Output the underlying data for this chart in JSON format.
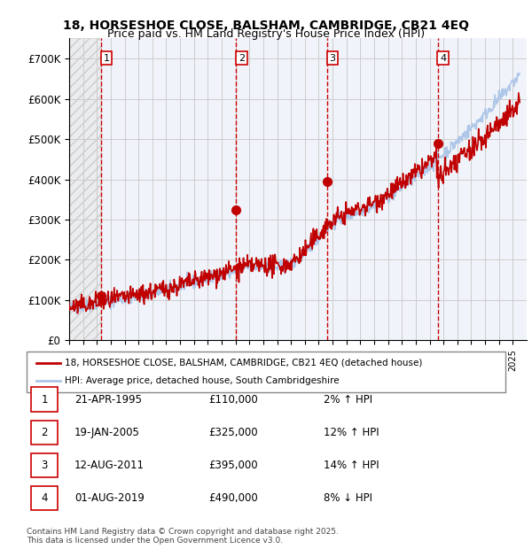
{
  "title_line1": "18, HORSESHOE CLOSE, BALSHAM, CAMBRIDGE, CB21 4EQ",
  "title_line2": "Price paid vs. HM Land Registry's House Price Index (HPI)",
  "ylabel": "",
  "ylim": [
    0,
    750000
  ],
  "yticks": [
    0,
    100000,
    200000,
    300000,
    400000,
    500000,
    600000,
    700000
  ],
  "ytick_labels": [
    "£0",
    "£100K",
    "£200K",
    "£300K",
    "£400K",
    "£500K",
    "£600K",
    "£700K"
  ],
  "hpi_color": "#aec6e8",
  "price_color": "#c00000",
  "sale_marker_color": "#c00000",
  "vline_color": "#cc0000",
  "background_hatch_color": "#e0e0e0",
  "grid_color": "#cccccc",
  "sales": [
    {
      "date_num": 1995.31,
      "price": 110000,
      "label": "1"
    },
    {
      "date_num": 2005.05,
      "price": 325000,
      "label": "2"
    },
    {
      "date_num": 2011.62,
      "price": 395000,
      "label": "3"
    },
    {
      "date_num": 2019.58,
      "price": 490000,
      "label": "4"
    }
  ],
  "legend_price_label": "18, HORSESHOE CLOSE, BALSHAM, CAMBRIDGE, CB21 4EQ (detached house)",
  "legend_hpi_label": "HPI: Average price, detached house, South Cambridgeshire",
  "table_rows": [
    {
      "num": "1",
      "date": "21-APR-1995",
      "price": "£110,000",
      "change": "2% ↑ HPI"
    },
    {
      "num": "2",
      "date": "19-JAN-2005",
      "price": "£325,000",
      "change": "12% ↑ HPI"
    },
    {
      "num": "3",
      "date": "12-AUG-2011",
      "price": "£395,000",
      "change": "14% ↑ HPI"
    },
    {
      "num": "4",
      "date": "01-AUG-2019",
      "price": "£490,000",
      "change": "8% ↓ HPI"
    }
  ],
  "footer": "Contains HM Land Registry data © Crown copyright and database right 2025.\nThis data is licensed under the Open Government Licence v3.0."
}
